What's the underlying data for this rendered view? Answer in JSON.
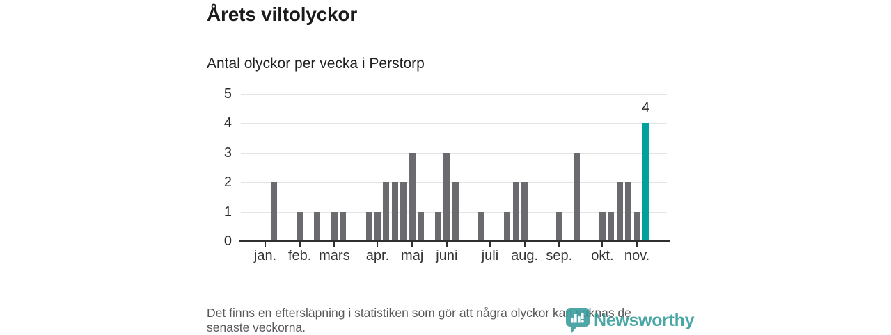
{
  "header": {
    "title": "Årets viltolyckor",
    "subtitle": "Antal olyckor per vecka i Perstorp"
  },
  "chart_data": {
    "type": "bar",
    "title": "Årets viltolyckor",
    "subtitle": "Antal olyckor per vecka i Perstorp",
    "x_unit": "vecka",
    "first_week": 1,
    "values_by_week": [
      0,
      0,
      2,
      0,
      0,
      1,
      0,
      1,
      0,
      1,
      1,
      0,
      0,
      1,
      1,
      2,
      2,
      2,
      3,
      1,
      0,
      1,
      3,
      2,
      0,
      0,
      1,
      0,
      0,
      1,
      2,
      2,
      0,
      0,
      0,
      1,
      0,
      3,
      0,
      0,
      1,
      1,
      2,
      2,
      1,
      4
    ],
    "highlight_week": 46,
    "highlight_label": "4",
    "ylim": [
      0,
      5
    ],
    "yticks": [
      0,
      1,
      2,
      3,
      4,
      5
    ],
    "grid": "horizontal",
    "legend": "none",
    "month_ticks": [
      {
        "label": "jan.",
        "week": 2
      },
      {
        "label": "feb.",
        "week": 6
      },
      {
        "label": "mars",
        "week": 10
      },
      {
        "label": "apr.",
        "week": 15
      },
      {
        "label": "maj",
        "week": 19
      },
      {
        "label": "juni",
        "week": 23
      },
      {
        "label": "juli",
        "week": 28
      },
      {
        "label": "aug.",
        "week": 32
      },
      {
        "label": "sep.",
        "week": 36
      },
      {
        "label": "okt.",
        "week": 41
      },
      {
        "label": "nov.",
        "week": 45
      }
    ],
    "colors": {
      "bar": "#6b6b6f",
      "highlight": "#00a09c",
      "grid": "#e4e4e4",
      "axis": "#2f2f2f",
      "logo_teal": "#2f9a99"
    }
  },
  "footer": {
    "lines": [
      "Det finns en eftersläpning i statistiken som gör att några olyckor kan saknas de",
      "senaste veckorna."
    ]
  },
  "logo": {
    "text": "Newsworthy",
    "icon": "newsworthy-bubble-chart-icon"
  }
}
